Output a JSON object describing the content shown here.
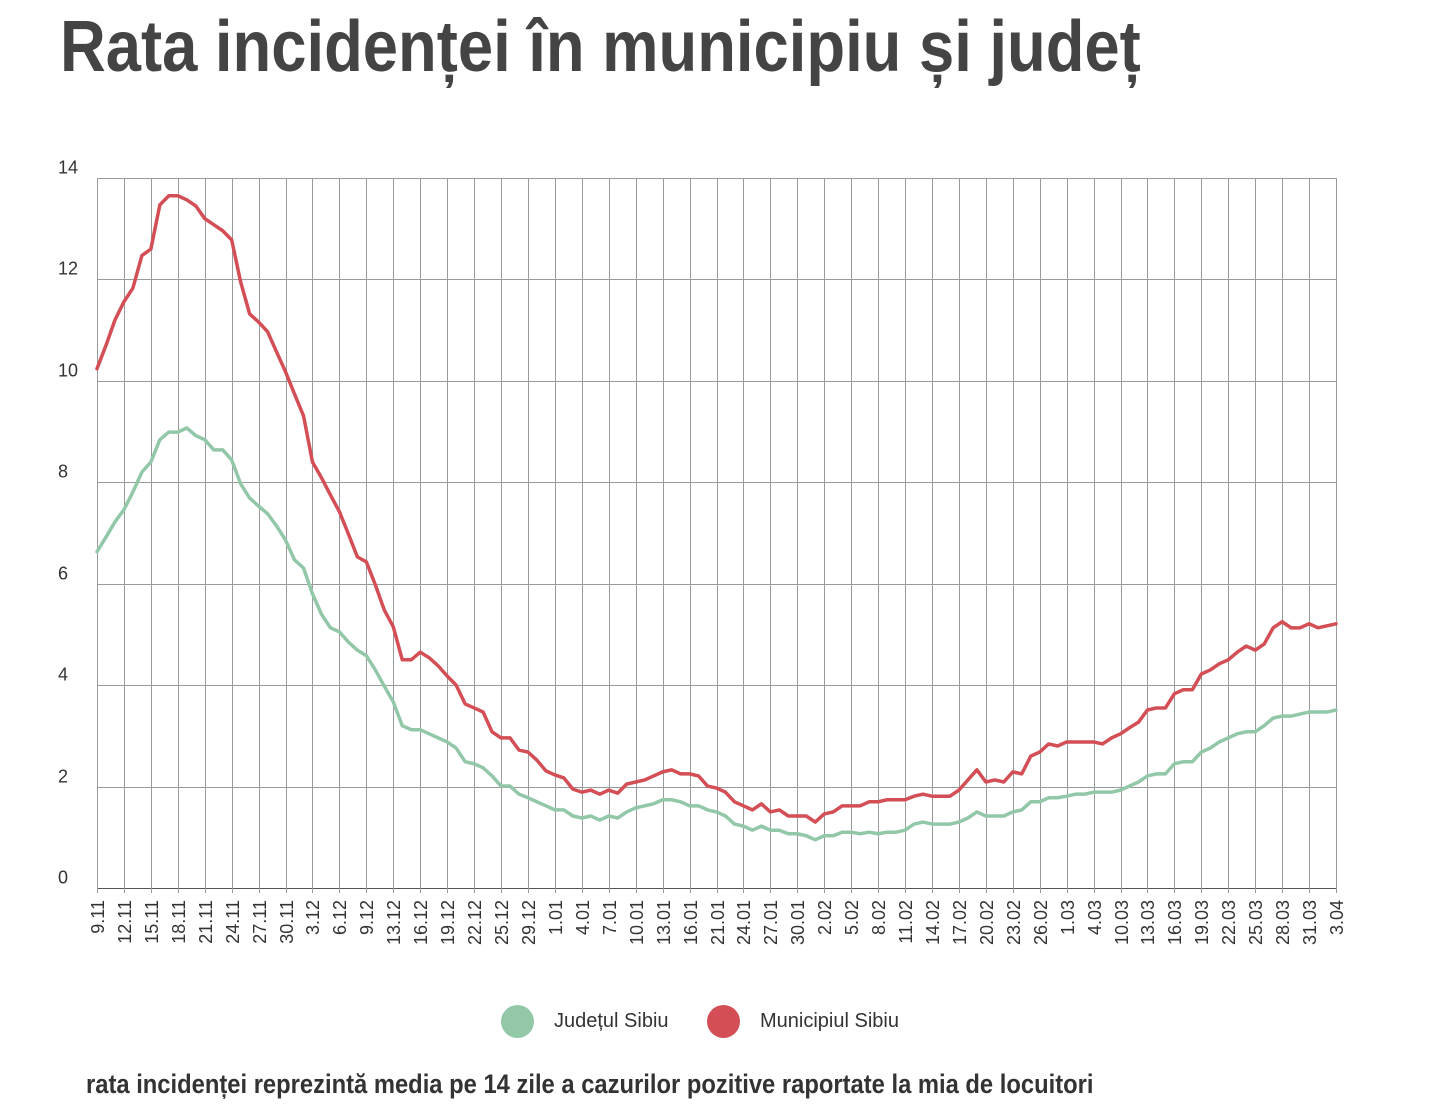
{
  "chart_data": {
    "type": "line",
    "title": "Rata incidenței în municipiu și județ",
    "xlabel": "",
    "ylabel": "",
    "ylim": [
      0,
      14
    ],
    "y_ticks": [
      0,
      2,
      4,
      6,
      8,
      10,
      12,
      14
    ],
    "grid": true,
    "legend": "bottom-center",
    "x_tick_labels": [
      "9.11",
      "12.11",
      "15.11",
      "18.11",
      "21.11",
      "24.11",
      "27.11",
      "30.11",
      "3.12",
      "6.12",
      "9.12",
      "13.12",
      "16.12",
      "19.12",
      "22.12",
      "25.12",
      "29.12",
      "1.01",
      "4.01",
      "7.01",
      "10.01",
      "13.01",
      "16.01",
      "21.01",
      "24.01",
      "27.01",
      "30.01",
      "2.02",
      "5.02",
      "8.02",
      "11.02",
      "14.02",
      "17.02",
      "20.02",
      "23.02",
      "26.02",
      "1.03",
      "4.03",
      "10.03",
      "13.03",
      "16.03",
      "19.03",
      "22.03",
      "25.03",
      "28.03",
      "31.03",
      "3.04"
    ],
    "series": [
      {
        "name": "Județul Sibiu",
        "color": "#92c7a8",
        "values": [
          6.63,
          6.92,
          7.22,
          7.46,
          7.81,
          8.2,
          8.4,
          8.84,
          8.99,
          8.99,
          9.07,
          8.92,
          8.84,
          8.64,
          8.64,
          8.44,
          7.97,
          7.69,
          7.53,
          7.38,
          7.14,
          6.86,
          6.47,
          6.31,
          5.8,
          5.4,
          5.13,
          5.05,
          4.85,
          4.69,
          4.58,
          4.3,
          3.98,
          3.67,
          3.2,
          3.12,
          3.12,
          3.04,
          2.96,
          2.88,
          2.76,
          2.49,
          2.45,
          2.37,
          2.21,
          2.01,
          2.01,
          1.85,
          1.78,
          1.7,
          1.62,
          1.54,
          1.54,
          1.42,
          1.38,
          1.42,
          1.34,
          1.42,
          1.38,
          1.5,
          1.58,
          1.62,
          1.66,
          1.74,
          1.74,
          1.7,
          1.62,
          1.62,
          1.54,
          1.5,
          1.42,
          1.26,
          1.22,
          1.14,
          1.22,
          1.14,
          1.14,
          1.07,
          1.07,
          1.03,
          0.95,
          1.03,
          1.03,
          1.1,
          1.1,
          1.07,
          1.1,
          1.07,
          1.1,
          1.1,
          1.14,
          1.26,
          1.3,
          1.26,
          1.26,
          1.26,
          1.3,
          1.38,
          1.5,
          1.42,
          1.42,
          1.42,
          1.5,
          1.54,
          1.7,
          1.7,
          1.78,
          1.78,
          1.81,
          1.85,
          1.85,
          1.89,
          1.89,
          1.89,
          1.93,
          2.01,
          2.09,
          2.21,
          2.25,
          2.25,
          2.45,
          2.49,
          2.49,
          2.68,
          2.76,
          2.88,
          2.96,
          3.04,
          3.08,
          3.08,
          3.2,
          3.35,
          3.39,
          3.39,
          3.43,
          3.47,
          3.47,
          3.47,
          3.51
        ]
      },
      {
        "name": "Municipiul Sibiu",
        "color": "#d34e55",
        "values": [
          10.24,
          10.7,
          11.2,
          11.56,
          11.83,
          12.47,
          12.6,
          13.47,
          13.65,
          13.65,
          13.57,
          13.45,
          13.2,
          13.08,
          12.96,
          12.78,
          11.95,
          11.32,
          11.16,
          10.97,
          10.57,
          10.18,
          9.74,
          9.31,
          8.4,
          8.09,
          7.75,
          7.42,
          6.98,
          6.53,
          6.43,
          5.98,
          5.48,
          5.15,
          4.5,
          4.5,
          4.65,
          4.54,
          4.38,
          4.18,
          4.0,
          3.63,
          3.55,
          3.47,
          3.08,
          2.96,
          2.96,
          2.72,
          2.68,
          2.52,
          2.31,
          2.23,
          2.17,
          1.95,
          1.89,
          1.93,
          1.85,
          1.93,
          1.87,
          2.05,
          2.09,
          2.13,
          2.21,
          2.29,
          2.33,
          2.25,
          2.25,
          2.21,
          2.01,
          1.97,
          1.89,
          1.7,
          1.62,
          1.54,
          1.66,
          1.5,
          1.54,
          1.42,
          1.42,
          1.42,
          1.3,
          1.46,
          1.5,
          1.62,
          1.62,
          1.62,
          1.7,
          1.7,
          1.74,
          1.74,
          1.74,
          1.81,
          1.85,
          1.81,
          1.81,
          1.81,
          1.93,
          2.13,
          2.33,
          2.09,
          2.13,
          2.09,
          2.29,
          2.25,
          2.6,
          2.68,
          2.84,
          2.8,
          2.88,
          2.88,
          2.88,
          2.88,
          2.84,
          2.96,
          3.04,
          3.16,
          3.27,
          3.51,
          3.55,
          3.55,
          3.83,
          3.91,
          3.91,
          4.22,
          4.3,
          4.42,
          4.5,
          4.65,
          4.77,
          4.69,
          4.81,
          5.13,
          5.25,
          5.13,
          5.13,
          5.21,
          5.13,
          5.17,
          5.21
        ]
      }
    ],
    "note": "rata incidenței reprezintă media pe 14 zile a cazurilor pozitive raportate la mia de locuitori"
  }
}
